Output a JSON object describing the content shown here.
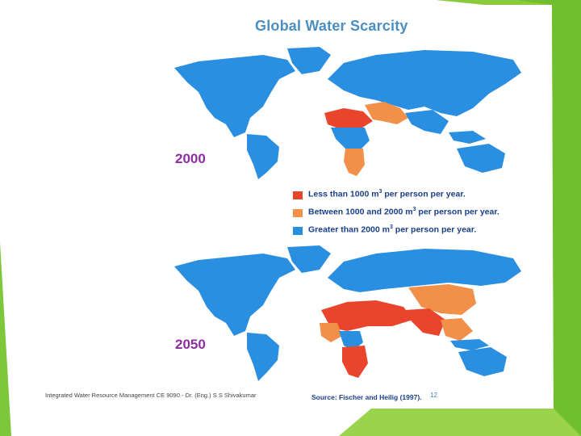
{
  "title": "Global Water Scarcity",
  "maps": [
    {
      "year": "2000"
    },
    {
      "year": "2050"
    }
  ],
  "legend": [
    {
      "prefix": "Less than 1000 m",
      "exp": "3",
      "suffix": " per person per year.",
      "color": "#e8452c"
    },
    {
      "prefix": "Between 1000 and 2000 m",
      "exp": "3",
      "suffix": " per person per year.",
      "color": "#f2904a"
    },
    {
      "prefix": "Greater than 2000 m",
      "exp": "3",
      "suffix": " per person per year.",
      "color": "#2a8fe0"
    }
  ],
  "source": "Source: Fischer and Heilig (1997).",
  "footer": "Integrated Water Resource Management CE 9090 - Dr. (Eng.) S S Shivakumar",
  "page_number": "12",
  "colors": {
    "accent_green": "#6fbf2f",
    "title_blue": "#4a8fc0",
    "year_purple": "#8e2da0",
    "ocean_land_blue": "#2a8fe0"
  }
}
